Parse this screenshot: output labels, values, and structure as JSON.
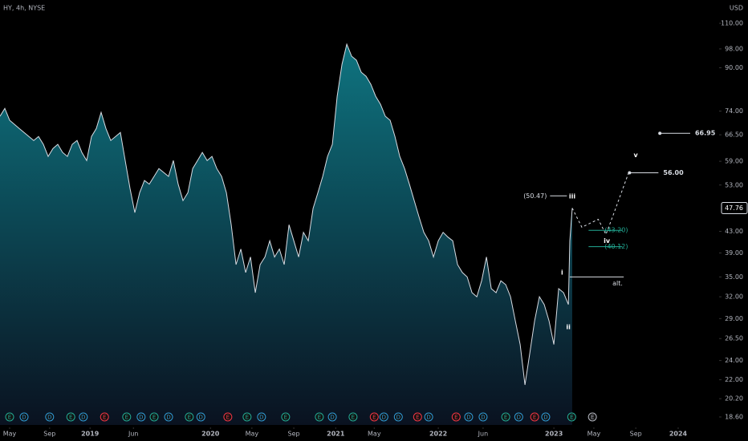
{
  "chart_data": {
    "type": "area",
    "title": "HY, 4h, NYSE",
    "currency": "USD",
    "log_scale": true,
    "line_color": "#d8dce3",
    "fill_top_color": "#0e7480",
    "fill_bottom_color": "#0a1220",
    "x": [
      0,
      1,
      2,
      3,
      4,
      5,
      6,
      7,
      8,
      9,
      10,
      11,
      12,
      13,
      14,
      15,
      16,
      17,
      18,
      19,
      20,
      21,
      22,
      23,
      24,
      25,
      26,
      27,
      28,
      29,
      30,
      31,
      32,
      33,
      34,
      35,
      36,
      37,
      38,
      39,
      40,
      41,
      42,
      43,
      44,
      45,
      46,
      47,
      48,
      49,
      50,
      51,
      52,
      53,
      54,
      55,
      56,
      57,
      58,
      59,
      60,
      61,
      62,
      63,
      64,
      65,
      66,
      67,
      68,
      69,
      70,
      71,
      72,
      73,
      74,
      75,
      76,
      77,
      78,
      79,
      80,
      81,
      82,
      83,
      84,
      85,
      86,
      87,
      88,
      89,
      90,
      91,
      92,
      93,
      94,
      95,
      96,
      97,
      98,
      99,
      100,
      101,
      102,
      103,
      104,
      105,
      106,
      107,
      108,
      109,
      110,
      111,
      112,
      113,
      114,
      115,
      116,
      117,
      118,
      118.3,
      118.8
    ],
    "values": [
      72.3,
      74.9,
      71,
      69.7,
      68.4,
      67.2,
      66,
      64.8,
      66,
      63.7,
      60.3,
      62.5,
      63.7,
      61.4,
      60.3,
      63.7,
      64.8,
      61.4,
      59.2,
      66,
      68.4,
      73.6,
      68.4,
      64.8,
      66,
      67.2,
      59.2,
      52.2,
      46.8,
      51.2,
      54.1,
      53.2,
      55.1,
      57.1,
      56.1,
      55.1,
      59.2,
      53.2,
      49.4,
      51.2,
      57.1,
      59.2,
      61.4,
      59.2,
      60.3,
      57.1,
      55.1,
      51.2,
      44.3,
      37.0,
      39.7,
      35.7,
      38.3,
      32.6,
      37.0,
      38.3,
      41.2,
      38.3,
      39.7,
      37.0,
      44.3,
      41.2,
      38.3,
      42.8,
      41.2,
      47.7,
      51.2,
      55.1,
      60.3,
      63.7,
      79.1,
      91.4,
      100.1,
      94.8,
      93.1,
      88.2,
      86.6,
      83.5,
      79.1,
      76.3,
      72.3,
      71,
      66,
      60.3,
      57.1,
      53.2,
      49.4,
      45.9,
      42.8,
      41.2,
      38.3,
      41.2,
      42.8,
      41.9,
      41.2,
      37.0,
      35.7,
      35,
      32.6,
      32.0,
      34.4,
      38.3,
      33.2,
      32.6,
      34.4,
      33.8,
      32.0,
      28.7,
      25.8,
      21.5,
      24.8,
      28.7,
      32.0,
      30.9,
      28.7,
      25.8,
      33.2,
      32.6,
      30.9,
      41.2,
      47.76
    ],
    "last_value": 47.76,
    "projection": {
      "x": [
        118.8,
        120.8,
        124.2,
        125.8,
        127.5,
        130.5
      ],
      "values": [
        47.76,
        43.8,
        45.4,
        42.4,
        46.8,
        56
      ]
    },
    "levels": [
      {
        "label": "(50.47)",
        "value": 50.47,
        "x": [
          114.2,
          117.7
        ],
        "color": "#d8dce3"
      },
      {
        "label": "(43.20)",
        "value": 43.2,
        "x": [
          122.2,
          129.2
        ],
        "color": "#22ab94"
      },
      {
        "label": "(40.12)",
        "value": 40.12,
        "x": [
          122.2,
          129.2
        ],
        "color": "#22ab94"
      },
      {
        "label": "alt.",
        "value": 35,
        "x": [
          118.3,
          129.5
        ],
        "color": "#d8dce3"
      },
      {
        "label": "56.00",
        "value": 56,
        "x": [
          130.7,
          136.7
        ],
        "color": "#d8dce3"
      },
      {
        "label": "66.95",
        "value": 66.95,
        "x": [
          137,
          143.3
        ],
        "color": "#d8dce3"
      }
    ],
    "waves": [
      {
        "text": "i",
        "x": 116.7,
        "value": 35.7
      },
      {
        "text": "ii",
        "x": 118,
        "value": 27.9
      },
      {
        "text": "iii",
        "x": 118.8,
        "value": 50.3
      },
      {
        "text": "iv",
        "x": 126,
        "value": 41.2
      },
      {
        "text": "v",
        "x": 132,
        "value": 60.7
      }
    ],
    "events": [
      {
        "x": 2,
        "label": "E",
        "color": "#22ab94"
      },
      {
        "x": 5,
        "label": "D",
        "color": "#2f9bd6"
      },
      {
        "x": 10.3,
        "label": "D",
        "color": "#2f9bd6"
      },
      {
        "x": 14.7,
        "label": "E",
        "color": "#22ab94"
      },
      {
        "x": 17.3,
        "label": "D",
        "color": "#2f9bd6"
      },
      {
        "x": 21.7,
        "label": "E",
        "color": "#f23645"
      },
      {
        "x": 26.3,
        "label": "E",
        "color": "#22ab94"
      },
      {
        "x": 29.3,
        "label": "D",
        "color": "#2f9bd6"
      },
      {
        "x": 32,
        "label": "E",
        "color": "#22ab94"
      },
      {
        "x": 35,
        "label": "D",
        "color": "#2f9bd6"
      },
      {
        "x": 39.3,
        "label": "E",
        "color": "#22ab94"
      },
      {
        "x": 41.7,
        "label": "D",
        "color": "#2f9bd6"
      },
      {
        "x": 47.3,
        "label": "E",
        "color": "#f23645"
      },
      {
        "x": 51.3,
        "label": "E",
        "color": "#22ab94"
      },
      {
        "x": 54.3,
        "label": "D",
        "color": "#2f9bd6"
      },
      {
        "x": 59.3,
        "label": "E",
        "color": "#22ab94"
      },
      {
        "x": 66.3,
        "label": "E",
        "color": "#22ab94"
      },
      {
        "x": 69,
        "label": "D",
        "color": "#2f9bd6"
      },
      {
        "x": 73.3,
        "label": "E",
        "color": "#22ab94"
      },
      {
        "x": 77.7,
        "label": "E",
        "color": "#f23645"
      },
      {
        "x": 79.7,
        "label": "D",
        "color": "#2f9bd6"
      },
      {
        "x": 82.7,
        "label": "D",
        "color": "#2f9bd6"
      },
      {
        "x": 86.7,
        "label": "E",
        "color": "#f23645"
      },
      {
        "x": 89,
        "label": "D",
        "color": "#2f9bd6"
      },
      {
        "x": 94.7,
        "label": "E",
        "color": "#f23645"
      },
      {
        "x": 97.3,
        "label": "D",
        "color": "#2f9bd6"
      },
      {
        "x": 100.3,
        "label": "D",
        "color": "#2f9bd6"
      },
      {
        "x": 105,
        "label": "E",
        "color": "#22ab94"
      },
      {
        "x": 107.7,
        "label": "D",
        "color": "#2f9bd6"
      },
      {
        "x": 111,
        "label": "E",
        "color": "#f23645"
      },
      {
        "x": 113.3,
        "label": "D",
        "color": "#2f9bd6"
      },
      {
        "x": 118.7,
        "label": "E",
        "color": "#22ab94"
      },
      {
        "x": 123,
        "label": "E",
        "color": "#b2b5be"
      }
    ],
    "xlim": [
      0,
      155.3
    ],
    "ylim": [
      17.94,
      122.2
    ],
    "xticks": [
      {
        "value": 2,
        "label": "May"
      },
      {
        "value": 10.3,
        "label": "Sep"
      },
      {
        "value": 18.7,
        "label": "2019"
      },
      {
        "value": 27.7,
        "label": "Jun"
      },
      {
        "value": 43.7,
        "label": "2020"
      },
      {
        "value": 52.3,
        "label": "May"
      },
      {
        "value": 61,
        "label": "Sep"
      },
      {
        "value": 69.7,
        "label": "2021"
      },
      {
        "value": 77.7,
        "label": "May"
      },
      {
        "value": 91,
        "label": "2022"
      },
      {
        "value": 100.3,
        "label": "Jun"
      },
      {
        "value": 115,
        "label": "2023"
      },
      {
        "value": 123.3,
        "label": "May"
      },
      {
        "value": 132,
        "label": "Sep"
      },
      {
        "value": 140.8,
        "label": "2024"
      }
    ],
    "yticks": [
      {
        "value": 110,
        "label": "110.00"
      },
      {
        "value": 98,
        "label": "98.00"
      },
      {
        "value": 90,
        "label": "90.00"
      },
      {
        "value": 74,
        "label": "74.00"
      },
      {
        "value": 66.5,
        "label": "66.50"
      },
      {
        "value": 59,
        "label": "59.00"
      },
      {
        "value": 53,
        "label": "53.00"
      },
      {
        "value": 43,
        "label": "43.00"
      },
      {
        "value": 39,
        "label": "39.00"
      },
      {
        "value": 35,
        "label": "35.00"
      },
      {
        "value": 32,
        "label": "32.00"
      },
      {
        "value": 29,
        "label": "29.00"
      },
      {
        "value": 26.5,
        "label": "26.50"
      },
      {
        "value": 24,
        "label": "24.00"
      },
      {
        "value": 22,
        "label": "22.00"
      },
      {
        "value": 20.2,
        "label": "20.20"
      },
      {
        "value": 18.6,
        "label": "18.60"
      }
    ]
  }
}
